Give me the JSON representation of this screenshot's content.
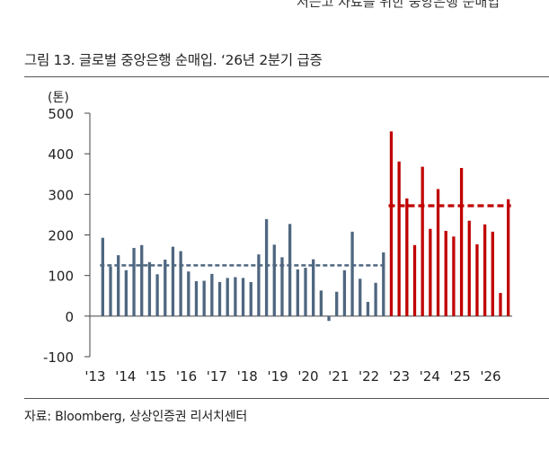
{
  "header": {
    "top_text": "저는고 자료를 위한 중앙은행 순매입",
    "title": "그림 13. 글로벌 중앙은행 순매입. ‘26년 2분기 급증",
    "source": "자료: Bloomberg, 상상인증권 리서치센터"
  },
  "colors": {
    "historical": "#4f6780",
    "recent": "#c00000",
    "axis": "#444444"
  },
  "chart_data": {
    "type": "bar",
    "title": "그림 13. 글로벌 중앙은행 순매입. ‘26년 2분기 급증",
    "ylabel": "(톤)",
    "xlabel": "",
    "ylim": [
      -100,
      500
    ],
    "yticks": [
      -100,
      0,
      100,
      200,
      300,
      400,
      500
    ],
    "x_tick_labels": [
      "'13",
      "'14",
      "'15",
      "'16",
      "'17",
      "'18",
      "'19",
      "'20",
      "'21",
      "'22",
      "'23",
      "'24",
      "'25",
      "'26"
    ],
    "grid": false,
    "legend": "none",
    "series": [
      {
        "values": [
          193,
          122,
          150,
          113,
          168,
          175,
          133,
          103,
          139,
          171,
          160,
          110,
          86,
          87,
          104,
          84,
          94,
          96,
          94,
          84,
          152,
          239,
          176,
          145,
          227,
          115,
          119,
          140,
          63,
          -12,
          60,
          113,
          208,
          92,
          35,
          82,
          157
        ]
      },
      {
        "values": [
          455,
          381,
          290,
          175,
          368,
          215,
          313,
          210,
          196,
          365,
          235,
          177,
          226,
          208,
          57,
          288
        ]
      }
    ],
    "averages": [
      {
        "value": 125
      },
      {
        "value": 272
      }
    ]
  }
}
